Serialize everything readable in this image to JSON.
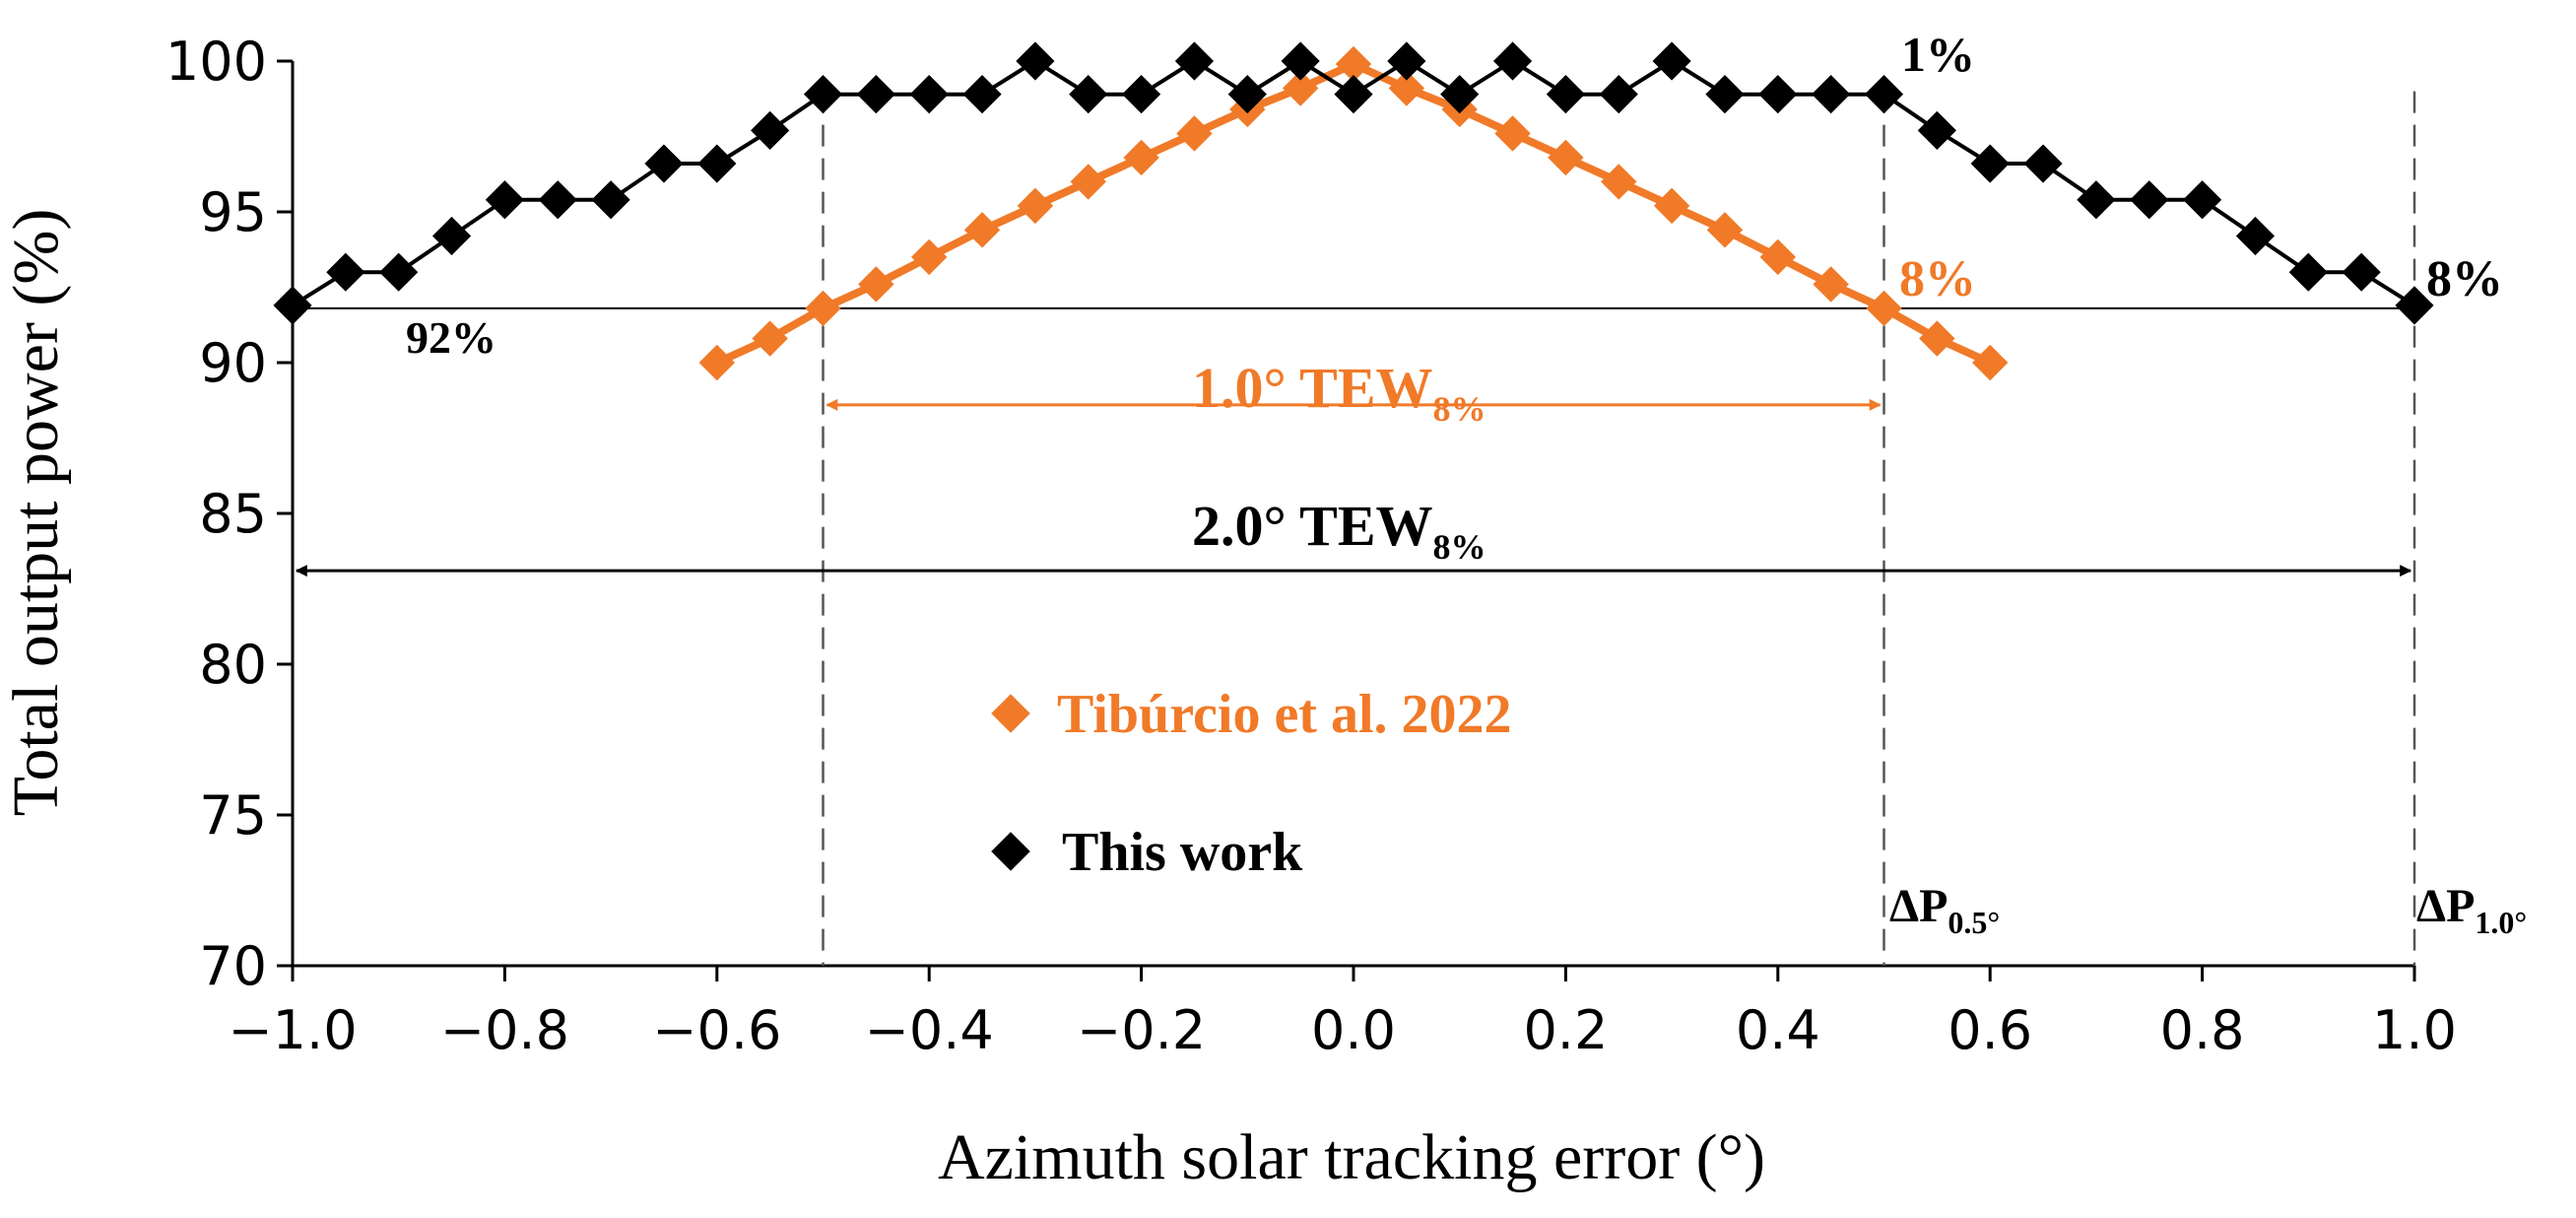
{
  "chart_data": {
    "type": "scatter",
    "xlabel": "Azimuth solar tracking error (°)",
    "ylabel": "Total output power (%)",
    "xlim": [
      -1.0,
      1.0
    ],
    "ylim": [
      70,
      100
    ],
    "x_ticks": [
      "−1.0",
      "−0.8",
      "−0.6",
      "−0.4",
      "−0.2",
      "0.0",
      "0.2",
      "0.4",
      "0.6",
      "0.8",
      "1.0"
    ],
    "y_ticks": [
      "70",
      "75",
      "80",
      "85",
      "90",
      "95",
      "100"
    ],
    "series": [
      {
        "name": "Tibúrcio et al. 2022",
        "color": "#f07a28",
        "x": [
          -0.6,
          -0.55,
          -0.5,
          -0.45,
          -0.4,
          -0.35,
          -0.3,
          -0.25,
          -0.2,
          -0.15,
          -0.1,
          -0.05,
          0.0,
          0.05,
          0.1,
          0.15,
          0.2,
          0.25,
          0.3,
          0.35,
          0.4,
          0.45,
          0.5,
          0.55,
          0.6
        ],
        "y": [
          90.0,
          90.8,
          91.8,
          92.6,
          93.5,
          94.4,
          95.2,
          96.0,
          96.8,
          97.6,
          98.4,
          99.1,
          99.9,
          99.1,
          98.4,
          97.6,
          96.8,
          96.0,
          95.2,
          94.4,
          93.5,
          92.6,
          91.8,
          90.8,
          90.0
        ]
      },
      {
        "name": "This work",
        "color": "#000000",
        "x": [
          -1.0,
          -0.95,
          -0.9,
          -0.85,
          -0.8,
          -0.75,
          -0.7,
          -0.65,
          -0.6,
          -0.55,
          -0.5,
          -0.45,
          -0.4,
          -0.35,
          -0.3,
          -0.25,
          -0.2,
          -0.15,
          -0.1,
          -0.05,
          0.0,
          0.05,
          0.1,
          0.15,
          0.2,
          0.25,
          0.3,
          0.35,
          0.4,
          0.45,
          0.5,
          0.55,
          0.6,
          0.65,
          0.7,
          0.75,
          0.8,
          0.85,
          0.9,
          0.95,
          1.0
        ],
        "y": [
          91.9,
          93.0,
          93.0,
          94.2,
          95.4,
          95.4,
          95.4,
          96.6,
          96.6,
          97.7,
          98.9,
          98.9,
          98.9,
          98.9,
          100.0,
          98.9,
          98.9,
          100.0,
          98.9,
          100.0,
          98.9,
          100.0,
          98.9,
          100.0,
          98.9,
          98.9,
          100.0,
          98.9,
          98.9,
          98.9,
          98.9,
          97.7,
          96.6,
          96.6,
          95.4,
          95.4,
          95.4,
          94.2,
          93.0,
          93.0,
          91.9
        ]
      }
    ],
    "reference_lines": {
      "horizontal_y": 91.8,
      "vertical_x": [
        -0.5,
        0.5,
        1.0
      ]
    },
    "annotations": {
      "label_92": "92%",
      "label_1": "1%",
      "label_8_orange": "8%",
      "label_8_black": "8%",
      "tew_orange_main": "1.0° TEW",
      "tew_orange_sub": "8%",
      "tew_black_main": "2.0° TEW",
      "tew_black_sub": "8%",
      "dp05_main": "ΔP",
      "dp05_sub": "0.5°",
      "dp10_main": "ΔP",
      "dp10_sub": "1.0°"
    },
    "tew_arrows": {
      "orange": {
        "x_from": -0.5,
        "x_to": 0.5,
        "y": 88.6
      },
      "black": {
        "x_from": -1.0,
        "x_to": 1.0,
        "y": 83.1
      }
    },
    "legend_position": "center-left inside plot"
  }
}
